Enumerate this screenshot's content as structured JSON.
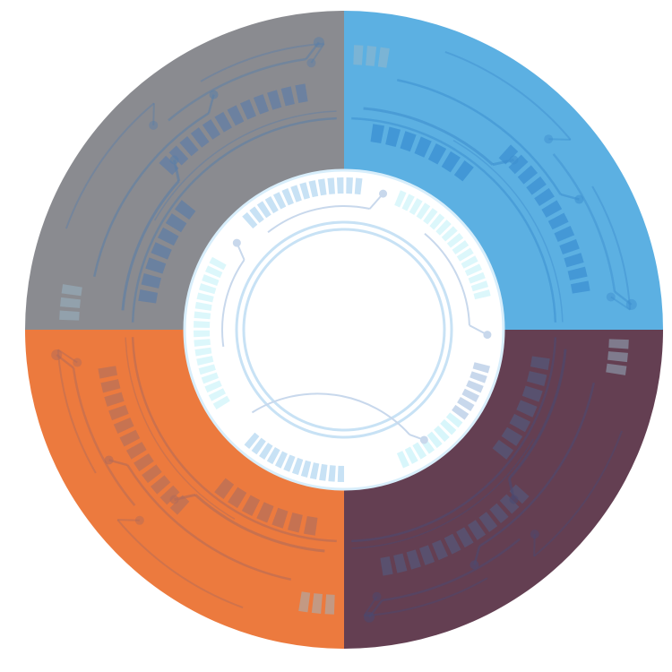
{
  "colors": {
    "quadrant_top_left": "#8a8b90",
    "quadrant_top_right": "#5cb0e2",
    "quadrant_bottom_left": "#ec7a3e",
    "quadrant_bottom_right": "#643f52",
    "inner_disc": "#ffffff",
    "inner_ring": "#c8e2f5",
    "inner_ticks_light": "#d8f6fb",
    "inner_ticks": "#c8e2f5",
    "inner_lines": "#c8d8ec"
  },
  "quadrants": [
    {
      "name": "top-left",
      "color_key": "quadrant_top_left",
      "line": "#5a7fa8",
      "ticks": "#5f7ea6"
    },
    {
      "name": "top-right",
      "color_key": "quadrant_top_right",
      "line": "#3d8fcf",
      "ticks": "#3a8fd2"
    },
    {
      "name": "bottom-right",
      "color_key": "quadrant_bottom_right",
      "line": "#4a4a72",
      "ticks": "#54587a"
    },
    {
      "name": "bottom-left",
      "color_key": "quadrant_bottom_left",
      "line": "#b06a5a",
      "ticks": "#b8705a"
    }
  ]
}
